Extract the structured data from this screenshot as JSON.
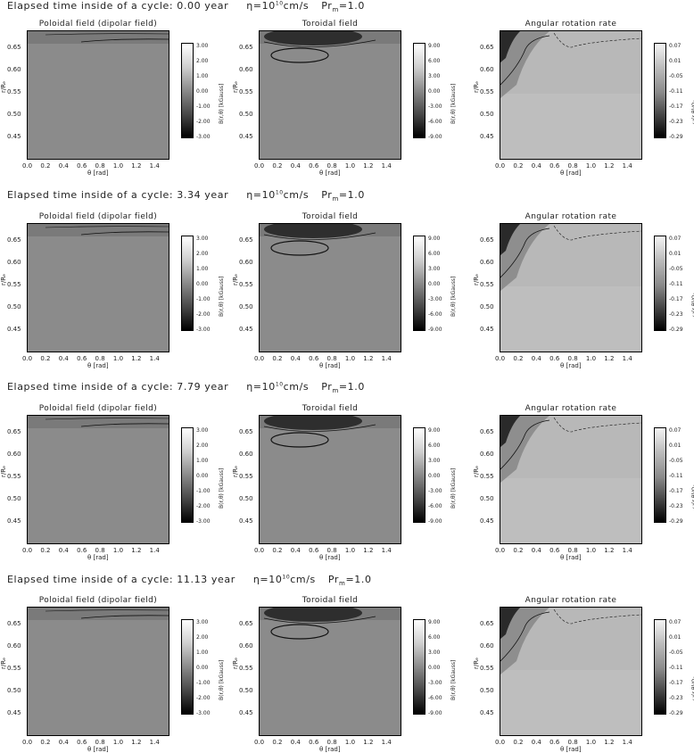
{
  "chart_data": {
    "type": "heatmap",
    "rows": [
      {
        "elapsed_time_label": "Elapsed time inside of a cycle: 0.00 year"
      },
      {
        "elapsed_time_label": "Elapsed time inside of a cycle: 3.34 year"
      },
      {
        "elapsed_time_label": "Elapsed time inside of a cycle: 7.79 year"
      },
      {
        "elapsed_time_label": "Elapsed time inside of a cycle: 11.13 year"
      }
    ],
    "params": {
      "eta_base": "η=10",
      "eta_exp": "10",
      "eta_unit": "cm/s",
      "pr_base": "Pr",
      "pr_sub": "m",
      "pr_value": "=1.0"
    },
    "panels": [
      {
        "title": "Poloidal field (dipolar field)",
        "colorbar_label": "B(r,θ) [kGauss]",
        "colorbar_ticks": [
          "3.00",
          "2.00",
          "1.00",
          "0.00",
          "-1.00",
          "-2.00",
          "-3.00"
        ],
        "range": [
          -3.0,
          3.0
        ]
      },
      {
        "title": "Toroidal field",
        "colorbar_label": "B(r,θ) [kGauss]",
        "colorbar_ticks": [
          "9.00",
          "6.00",
          "3.00",
          "0.00",
          "-3.00",
          "-6.00",
          "-9.00"
        ],
        "range": [
          -9.0,
          9.0
        ]
      },
      {
        "title": "Angular rotation rate",
        "colorbar_label": "ω(r,θ)/Ω₀",
        "colorbar_ticks": [
          "0.07",
          "0.01",
          "-0.05",
          "-0.11",
          "-0.17",
          "-0.23",
          "-0.29"
        ],
        "range": [
          -0.29,
          0.07
        ]
      }
    ],
    "x_axis": {
      "label": "θ [rad]",
      "ticks": [
        "0.0",
        "0.2",
        "0.4",
        "0.6",
        "0.8",
        "1.0",
        "1.2",
        "1.4"
      ],
      "range": [
        0.0,
        1.57
      ]
    },
    "y_axis": {
      "label": "r/Rₑ",
      "ticks": [
        "0.65",
        "0.60",
        "0.55",
        "0.50",
        "0.45"
      ],
      "range": [
        0.4,
        0.69
      ]
    }
  }
}
